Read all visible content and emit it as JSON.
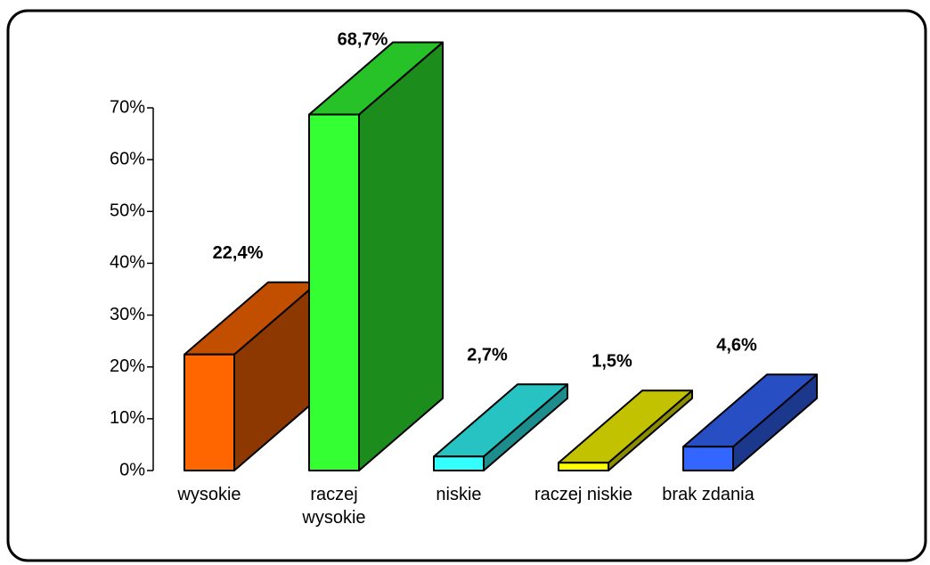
{
  "chart_data": {
    "type": "bar3d",
    "categories": [
      "wysokie",
      "raczej\nwysokie",
      "niskie",
      "raczej niskie",
      "brak zdania"
    ],
    "values": [
      22.4,
      68.7,
      2.7,
      1.5,
      4.6
    ],
    "value_labels": [
      "22,4%",
      "68,7%",
      "2,7%",
      "1,5%",
      "4,6%"
    ],
    "colors": [
      "#ff6600",
      "#33ff33",
      "#33ffff",
      "#ffff00",
      "#3366ff"
    ],
    "ylim": [
      0,
      70
    ],
    "yticks": [
      {
        "value": 0,
        "label": "0%"
      },
      {
        "value": 10,
        "label": "10%"
      },
      {
        "value": 20,
        "label": "20%"
      },
      {
        "value": 30,
        "label": "30%"
      },
      {
        "value": 40,
        "label": "40%"
      },
      {
        "value": 50,
        "label": "50%"
      },
      {
        "value": 60,
        "label": "60%"
      },
      {
        "value": 70,
        "label": "70%"
      }
    ]
  }
}
